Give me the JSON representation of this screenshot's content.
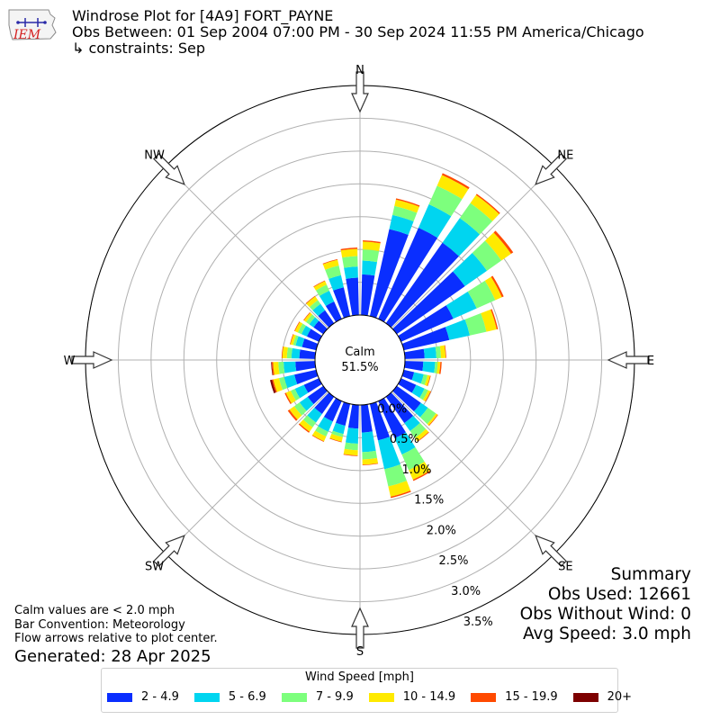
{
  "header": {
    "logo_text": "IEM",
    "title": "Windrose Plot for [4A9] FORT_PAYNE",
    "obs_between": "Obs Between: 01 Sep 2004 07:00 PM - 30 Sep 2024 11:55 PM America/Chicago",
    "constraints": "↳ constraints: Sep"
  },
  "chart_data": {
    "type": "windrose",
    "directions": [
      "N",
      "NNE",
      "NE",
      "ENE",
      "E",
      "ESE",
      "SE",
      "SSE",
      "S",
      "SSW",
      "SW",
      "WSW",
      "W",
      "WNW",
      "NW",
      "NNW"
    ],
    "compass_labels": [
      "N",
      "NE",
      "E",
      "SE",
      "S",
      "SW",
      "W",
      "NW"
    ],
    "calm_label": "Calm",
    "calm_value": "51.5%",
    "radial_tick_labels": [
      "0.0%",
      "0.5%",
      "1.0%",
      "1.5%",
      "2.0%",
      "2.5%",
      "3.0%",
      "3.5%"
    ],
    "radial_range": [
      0,
      3.5
    ],
    "petals_per_direction": 2,
    "series": [
      {
        "name": "2 - 4.9",
        "color": "#0a2eff",
        "values": [
          0.57,
          0.62,
          1.36,
          1.52,
          1.5,
          1.27,
          0.87,
          0.71,
          0.3,
          0.28,
          0.16,
          0.25,
          0.45,
          0.49,
          0.62,
          0.57,
          0.42,
          0.36,
          0.34,
          0.34,
          0.32,
          0.29,
          0.25,
          0.34,
          0.3,
          0.24,
          0.22,
          0.2,
          0.18,
          0.24,
          0.29,
          0.45
        ]
      },
      {
        "name": "5 - 6.9",
        "color": "#00d5f0",
        "values": [
          0.17,
          0.21,
          0.22,
          0.39,
          0.46,
          0.41,
          0.39,
          0.32,
          0.18,
          0.18,
          0.15,
          0.14,
          0.13,
          0.15,
          0.27,
          0.45,
          0.3,
          0.23,
          0.13,
          0.17,
          0.16,
          0.15,
          0.15,
          0.16,
          0.18,
          0.12,
          0.1,
          0.09,
          0.08,
          0.12,
          0.18,
          0.19
        ]
      },
      {
        "name": "7 - 9.9",
        "color": "#7dff7d",
        "values": [
          0.16,
          0.17,
          0.14,
          0.31,
          0.28,
          0.27,
          0.31,
          0.26,
          0.07,
          0.04,
          0.06,
          0.06,
          0.15,
          0.13,
          0.26,
          0.27,
          0.11,
          0.1,
          0.05,
          0.08,
          0.09,
          0.1,
          0.07,
          0.08,
          0.08,
          0.07,
          0.04,
          0.06,
          0.06,
          0.07,
          0.1,
          0.15
        ]
      },
      {
        "name": "10 - 14.9",
        "color": "#ffea00",
        "values": [
          0.11,
          0.12,
          0.1,
          0.18,
          0.15,
          0.18,
          0.11,
          0.16,
          0.07,
          0.04,
          0.04,
          0.04,
          0.03,
          0.06,
          0.16,
          0.16,
          0.08,
          0.08,
          0.07,
          0.08,
          0.08,
          0.09,
          0.08,
          0.09,
          0.08,
          0.07,
          0.04,
          0.05,
          0.04,
          0.07,
          0.06,
          0.09
        ]
      },
      {
        "name": "15 - 19.9",
        "color": "#ff4a00",
        "values": [
          0.02,
          0.02,
          0.02,
          0.03,
          0.02,
          0.04,
          0.03,
          0.02,
          0.01,
          0.02,
          0.01,
          0.01,
          0.01,
          0.01,
          0.02,
          0.02,
          0.01,
          0.01,
          0.01,
          0.01,
          0.02,
          0.03,
          0.02,
          0.02,
          0.02,
          0.01,
          0.01,
          0.01,
          0.01,
          0.01,
          0.01,
          0.01
        ]
      },
      {
        "name": "20+",
        "color": "#7d0000",
        "values": [
          0,
          0,
          0,
          0,
          0,
          0,
          0,
          0,
          0,
          0,
          0,
          0,
          0,
          0,
          0,
          0,
          0,
          0,
          0,
          0,
          0,
          0,
          0,
          0.03,
          0.01,
          0,
          0,
          0,
          0,
          0,
          0,
          0
        ]
      }
    ]
  },
  "notes": {
    "calm": "Calm values are < 2.0 mph",
    "convention": "Bar Convention: Meteorology",
    "flow": "Flow arrows relative to plot center.",
    "generated": "Generated: 28 Apr 2025"
  },
  "summary": {
    "title": "Summary",
    "obs_used": "Obs Used: 12661",
    "obs_without_wind": "Obs Without Wind: 0",
    "avg_speed": "Avg Speed: 3.0 mph"
  },
  "legend": {
    "title": "Wind Speed [mph]"
  }
}
